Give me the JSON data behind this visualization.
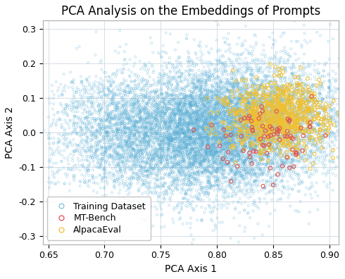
{
  "title": "PCA Analysis on the Embeddings of Prompts",
  "xlabel": "PCA Axis 1",
  "ylabel": "PCA Axis 2",
  "xlim": [
    0.645,
    0.908
  ],
  "ylim": [
    -0.325,
    0.325
  ],
  "xticks": [
    0.65,
    0.7,
    0.75,
    0.8,
    0.85,
    0.9
  ],
  "yticks": [
    -0.3,
    -0.2,
    -0.1,
    0.0,
    0.1,
    0.2,
    0.3
  ],
  "training_color": "#5BAFD6",
  "mt_bench_color": "#E05050",
  "alpaca_eval_color": "#F0C030",
  "background_color": "#FFFFFF",
  "grid_color": "#D0D8E0",
  "training_n": 12000,
  "mt_bench_n": 80,
  "alpaca_eval_n": 805,
  "seed": 99,
  "title_fontsize": 12,
  "label_fontsize": 10,
  "tick_fontsize": 9,
  "legend_fontsize": 9,
  "train_marker_size": 5,
  "alpaca_marker_size": 12,
  "mt_marker_size": 14
}
